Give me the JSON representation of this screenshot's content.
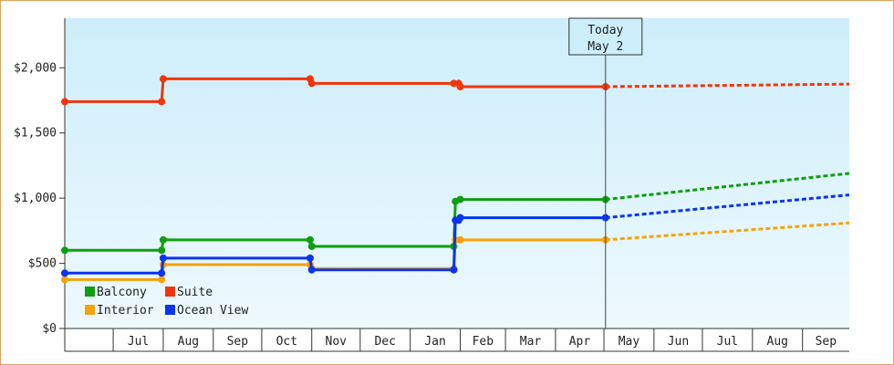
{
  "chart_data": {
    "type": "line",
    "step": true,
    "yticks": [
      0,
      500,
      1000,
      1500,
      2000
    ],
    "ytick_labels": [
      "$0",
      "$500",
      "$1,000",
      "$1,500",
      "$2,000"
    ],
    "ylim": [
      0,
      2380
    ],
    "xlim": [
      "2013-06-01",
      "2014-09-30"
    ],
    "month_ticks": [
      {
        "date": "2013-06-01",
        "label": ""
      },
      {
        "date": "2013-07-01",
        "label": "Jul"
      },
      {
        "date": "2013-08-01",
        "label": "Aug"
      },
      {
        "date": "2013-09-01",
        "label": "Sep"
      },
      {
        "date": "2013-10-01",
        "label": "Oct"
      },
      {
        "date": "2013-11-01",
        "label": "Nov"
      },
      {
        "date": "2013-12-01",
        "label": "Dec"
      },
      {
        "date": "2014-01-01",
        "label": "Jan"
      },
      {
        "date": "2014-02-01",
        "label": "Feb"
      },
      {
        "date": "2014-03-01",
        "label": "Mar"
      },
      {
        "date": "2014-04-01",
        "label": "Apr"
      },
      {
        "date": "2014-05-01",
        "label": "May"
      },
      {
        "date": "2014-06-01",
        "label": "Jun"
      },
      {
        "date": "2014-07-01",
        "label": "Jul"
      },
      {
        "date": "2014-08-01",
        "label": "Aug"
      },
      {
        "date": "2014-09-01",
        "label": "Sep"
      }
    ],
    "today": {
      "date": "2014-05-02",
      "label_line1": "Today",
      "label_line2": "May 2"
    },
    "legend": {
      "placement": "bottom-left"
    },
    "series": [
      {
        "name": "Balcony",
        "color": "#0e9e0e",
        "points": [
          [
            "2013-06-01",
            600
          ],
          [
            "2013-07-31",
            600
          ],
          [
            "2013-08-01",
            680
          ],
          [
            "2013-10-31",
            680
          ],
          [
            "2013-11-01",
            630
          ],
          [
            "2014-01-28",
            630
          ],
          [
            "2014-01-29",
            975
          ],
          [
            "2014-02-01",
            990
          ],
          [
            "2014-05-02",
            990
          ]
        ],
        "forecast": [
          [
            "2014-05-02",
            990
          ],
          [
            "2014-09-30",
            1190
          ]
        ]
      },
      {
        "name": "Suite",
        "color": "#f0360a",
        "points": [
          [
            "2013-06-01",
            1740
          ],
          [
            "2013-07-31",
            1740
          ],
          [
            "2013-08-01",
            1915
          ],
          [
            "2013-10-31",
            1915
          ],
          [
            "2013-11-01",
            1880
          ],
          [
            "2014-01-28",
            1880
          ],
          [
            "2014-01-31",
            1880
          ],
          [
            "2014-02-01",
            1855
          ],
          [
            "2014-05-02",
            1855
          ]
        ],
        "forecast": [
          [
            "2014-05-02",
            1855
          ],
          [
            "2014-09-30",
            1875
          ]
        ]
      },
      {
        "name": "Interior",
        "color": "#f5a30a",
        "points": [
          [
            "2013-06-01",
            375
          ],
          [
            "2013-07-31",
            375
          ],
          [
            "2013-08-01",
            490
          ],
          [
            "2013-10-31",
            490
          ],
          [
            "2013-11-01",
            460
          ],
          [
            "2014-01-28",
            460
          ],
          [
            "2014-01-29",
            680
          ],
          [
            "2014-02-01",
            680
          ],
          [
            "2014-05-02",
            680
          ]
        ],
        "forecast": [
          [
            "2014-05-02",
            680
          ],
          [
            "2014-09-30",
            810
          ]
        ]
      },
      {
        "name": "Ocean View",
        "color": "#0a34f0",
        "points": [
          [
            "2013-06-01",
            425
          ],
          [
            "2013-07-31",
            425
          ],
          [
            "2013-08-01",
            540
          ],
          [
            "2013-10-31",
            540
          ],
          [
            "2013-11-01",
            450
          ],
          [
            "2014-01-28",
            450
          ],
          [
            "2014-01-29",
            830
          ],
          [
            "2014-01-31",
            830
          ],
          [
            "2014-02-01",
            850
          ],
          [
            "2014-05-02",
            850
          ]
        ],
        "forecast": [
          [
            "2014-05-02",
            850
          ],
          [
            "2014-09-30",
            1025
          ]
        ]
      }
    ]
  }
}
